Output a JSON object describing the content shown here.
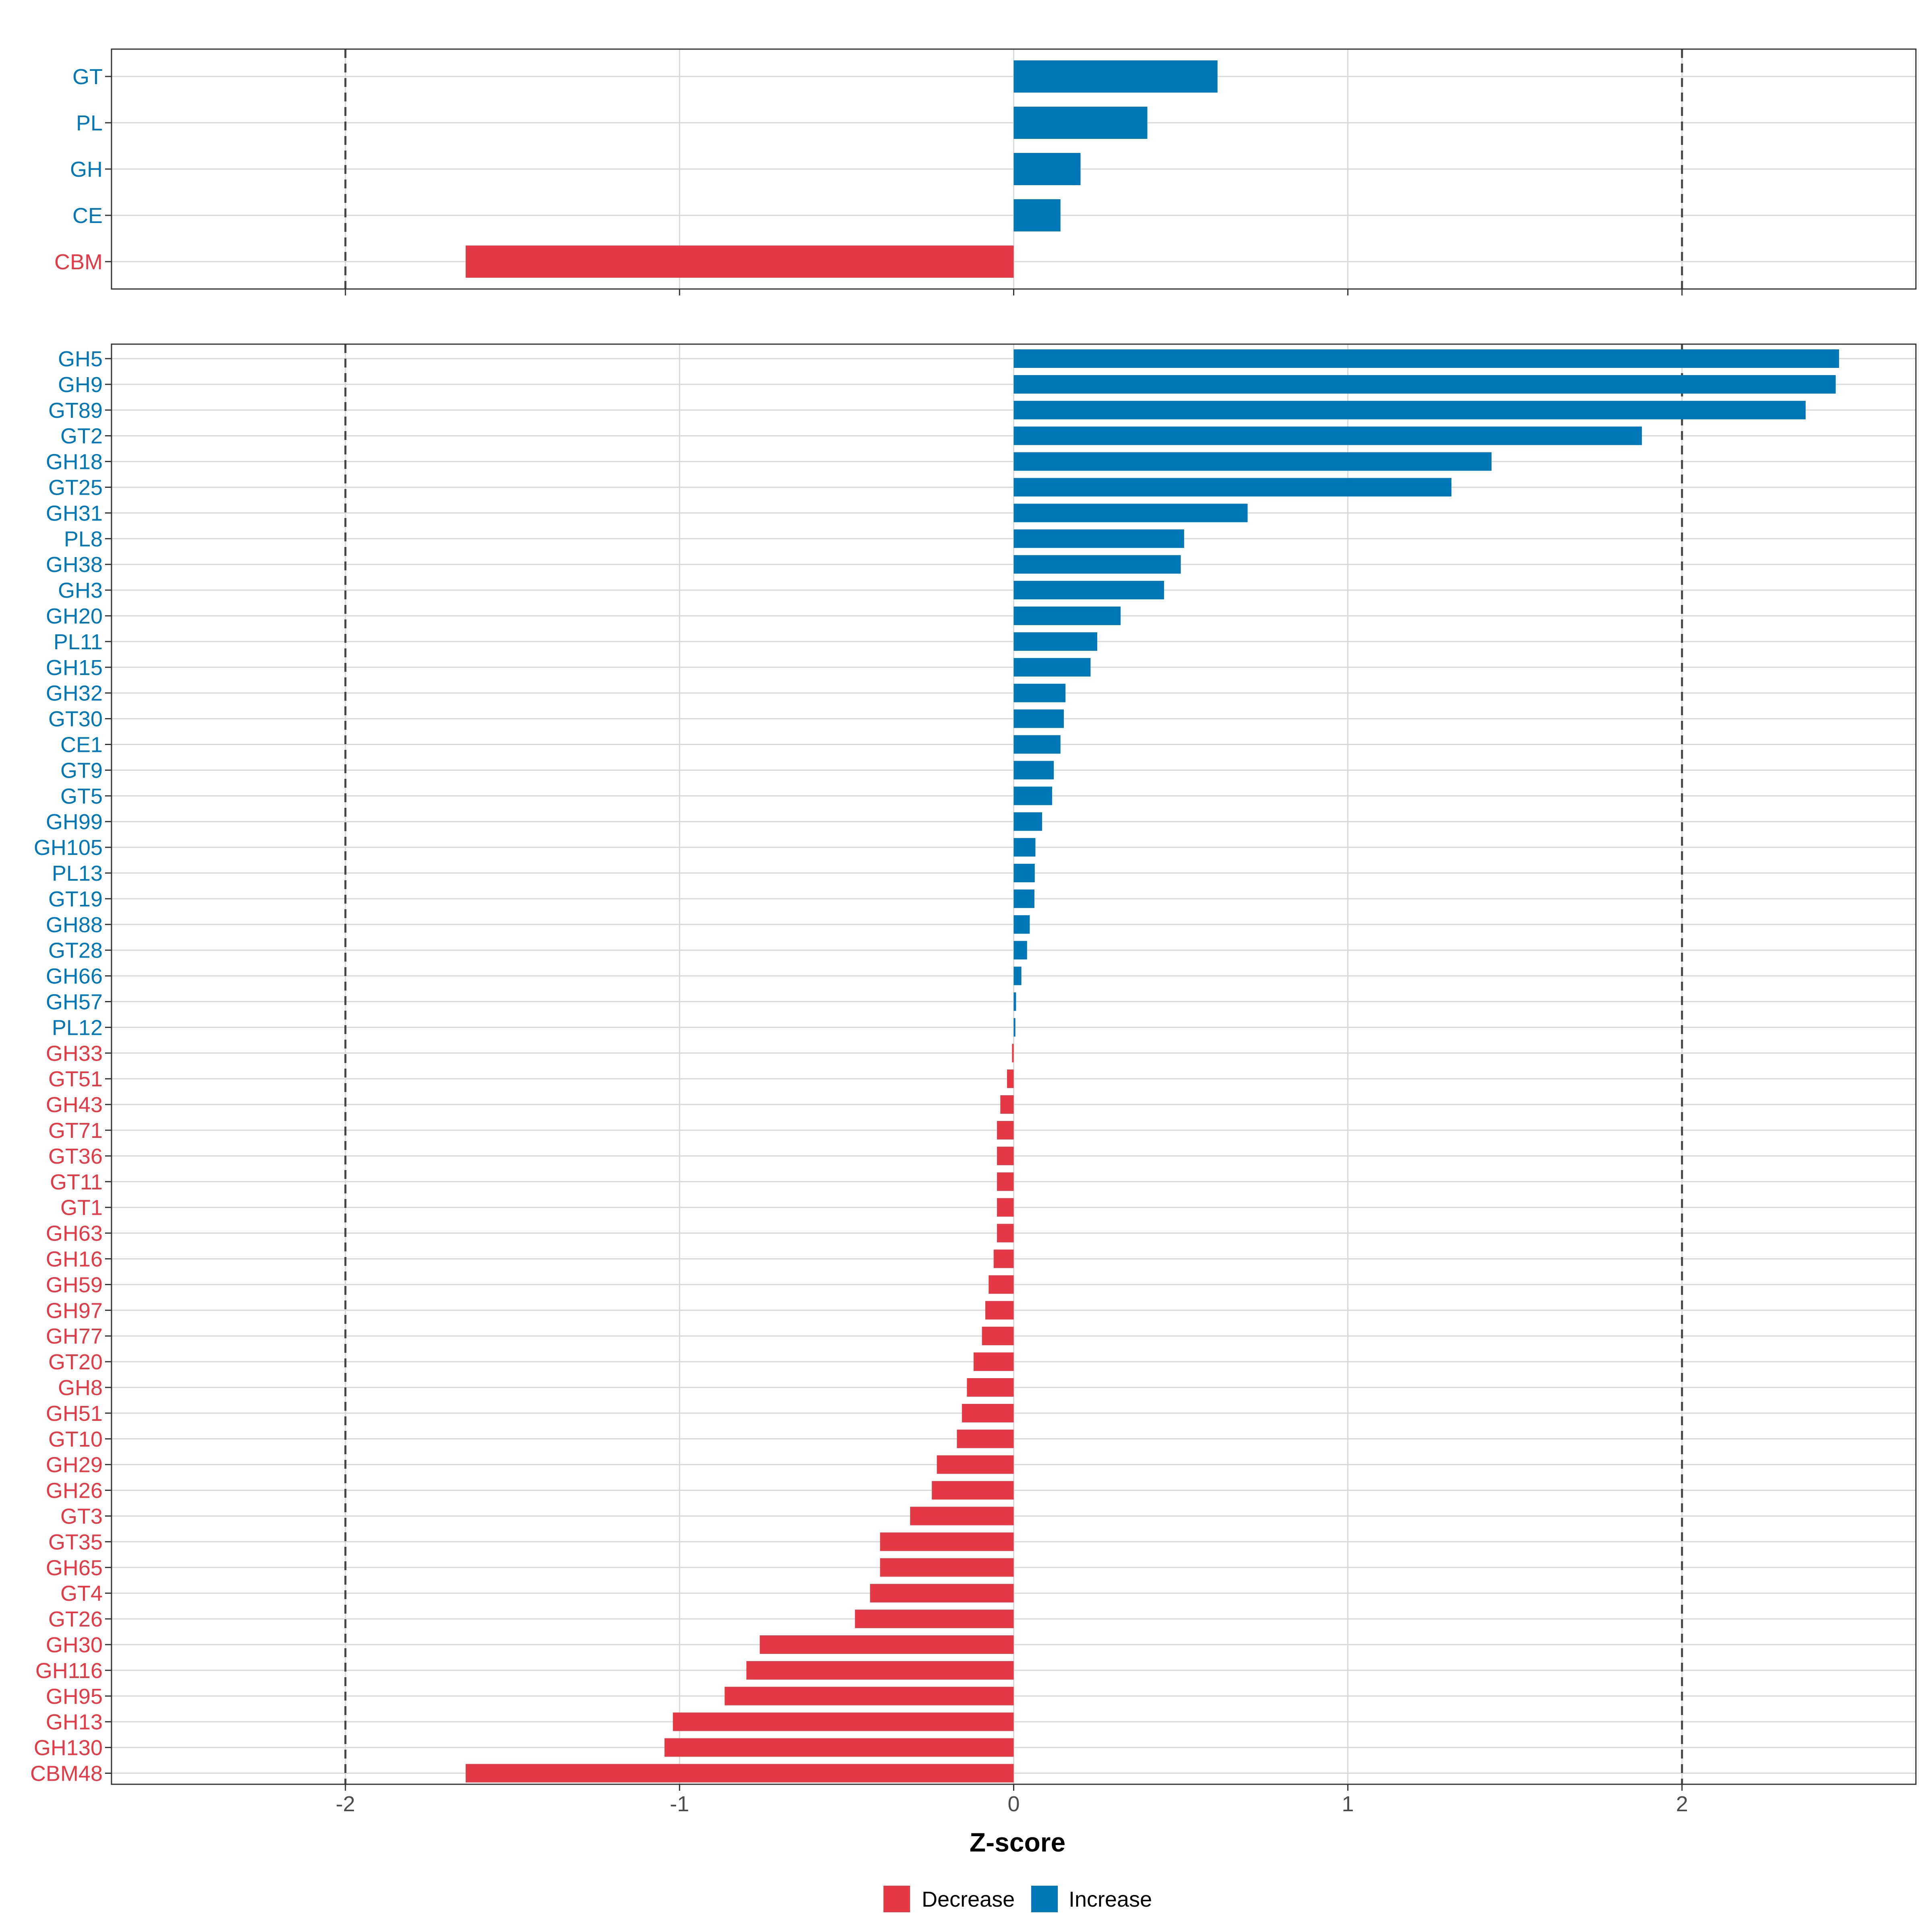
{
  "chart_data": [
    {
      "type": "bar",
      "orientation": "horizontal",
      "panel": "family",
      "categories": [
        "GT",
        "PL",
        "GH",
        "CE",
        "CBM"
      ],
      "values": [
        0.61,
        0.4,
        0.2,
        0.14,
        -1.64
      ],
      "xlim": [
        -2.7,
        2.7
      ],
      "reference_lines": [
        -2,
        2
      ]
    },
    {
      "type": "bar",
      "orientation": "horizontal",
      "panel": "subfamily",
      "categories": [
        "GH5",
        "GH9",
        "GT89",
        "GT2",
        "GH18",
        "GT25",
        "GH31",
        "PL8",
        "GH38",
        "GH3",
        "GH20",
        "PL11",
        "GH15",
        "GH32",
        "GT30",
        "CE1",
        "GT9",
        "GT5",
        "GH99",
        "GH105",
        "PL13",
        "GT19",
        "GH88",
        "GT28",
        "GH66",
        "GH57",
        "PL12",
        "GH33",
        "GT51",
        "GH43",
        "GT71",
        "GT36",
        "GT11",
        "GT1",
        "GH63",
        "GH16",
        "GH59",
        "GH97",
        "GH77",
        "GT20",
        "GH8",
        "GH51",
        "GT10",
        "GH29",
        "GH26",
        "GT3",
        "GT35",
        "GH65",
        "GT4",
        "GT26",
        "GH30",
        "GH116",
        "GH95",
        "GH13",
        "GH130",
        "CBM48"
      ],
      "values": [
        2.47,
        2.46,
        2.37,
        1.88,
        1.43,
        1.31,
        0.7,
        0.51,
        0.5,
        0.45,
        0.32,
        0.25,
        0.23,
        0.155,
        0.15,
        0.14,
        0.12,
        0.115,
        0.085,
        0.065,
        0.063,
        0.062,
        0.048,
        0.04,
        0.023,
        0.007,
        0.005,
        -0.005,
        -0.02,
        -0.04,
        -0.05,
        -0.05,
        -0.05,
        -0.05,
        -0.05,
        -0.06,
        -0.075,
        -0.085,
        -0.095,
        -0.12,
        -0.14,
        -0.155,
        -0.17,
        -0.23,
        -0.245,
        -0.31,
        -0.4,
        -0.4,
        -0.43,
        -0.475,
        -0.76,
        -0.8,
        -0.865,
        -1.02,
        -1.045,
        -1.64
      ],
      "xlim": [
        -2.7,
        2.7
      ],
      "reference_lines": [
        -2,
        2
      ],
      "xticks": [
        "-2",
        "-1",
        "0",
        "1",
        "2"
      ],
      "xlabel": "Z-score"
    }
  ],
  "legend": {
    "items": [
      {
        "label": "Decrease",
        "color": "#E63946"
      },
      {
        "label": "Increase",
        "color": "#0077B6"
      }
    ]
  },
  "colors": {
    "increase": "#0077B6",
    "decrease": "#E63946"
  }
}
